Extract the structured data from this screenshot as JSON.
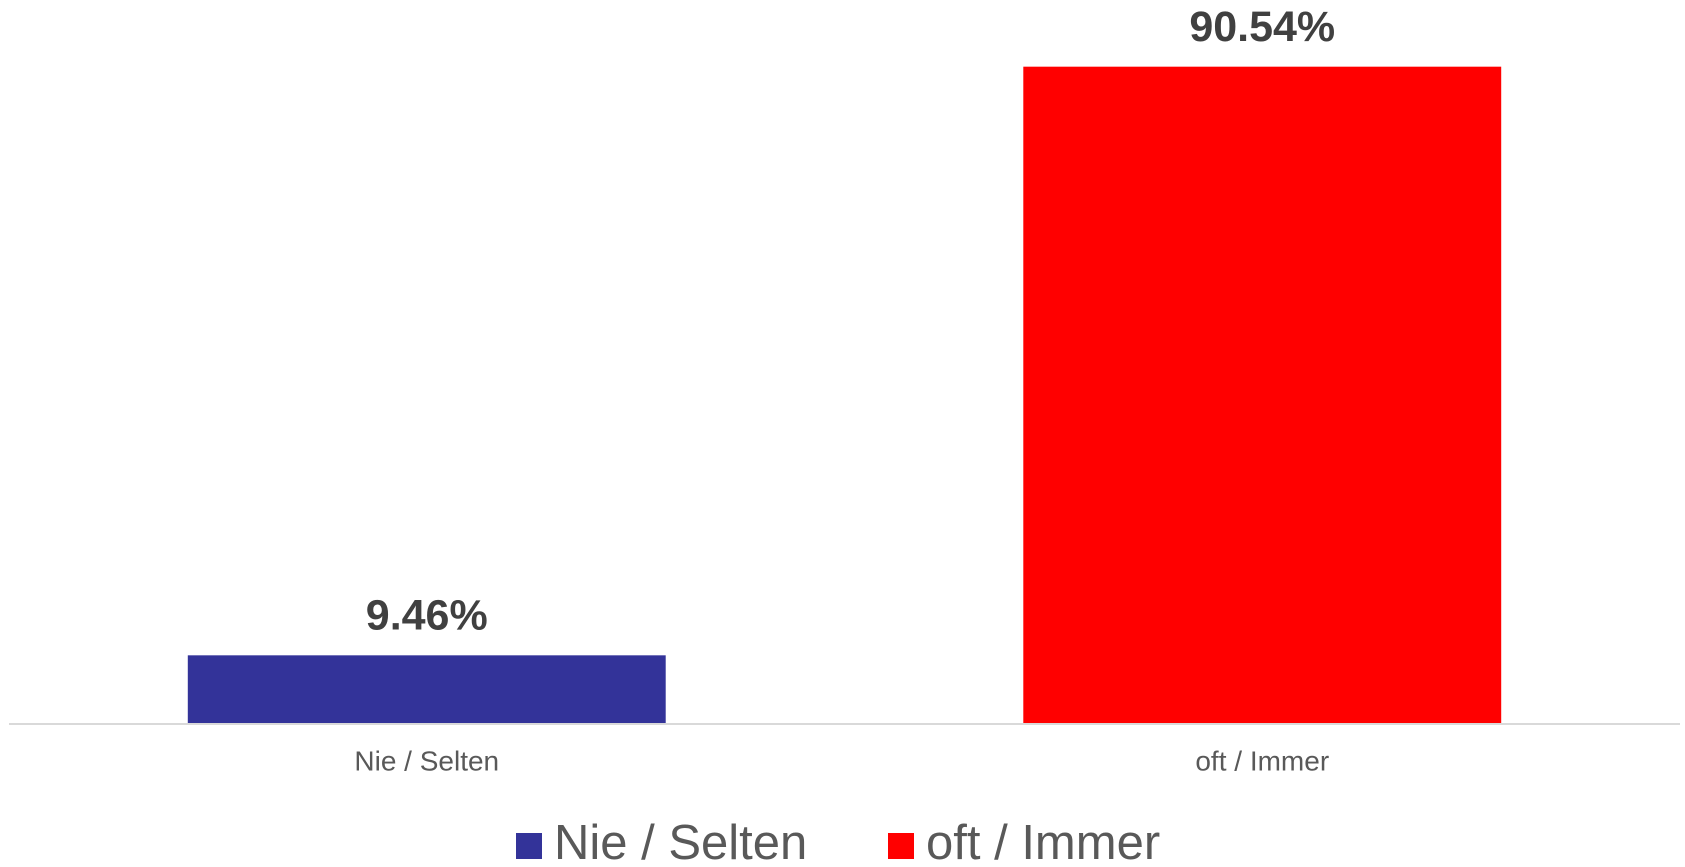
{
  "chart_data": {
    "type": "bar",
    "categories": [
      "Nie / Selten",
      "oft / Immer"
    ],
    "values": [
      9.46,
      90.54
    ],
    "value_labels": [
      "9.46%",
      "90.54%"
    ],
    "colors": [
      "#333399",
      "#ff0000"
    ],
    "ylim": [
      0,
      100
    ],
    "legend": "bottom"
  }
}
